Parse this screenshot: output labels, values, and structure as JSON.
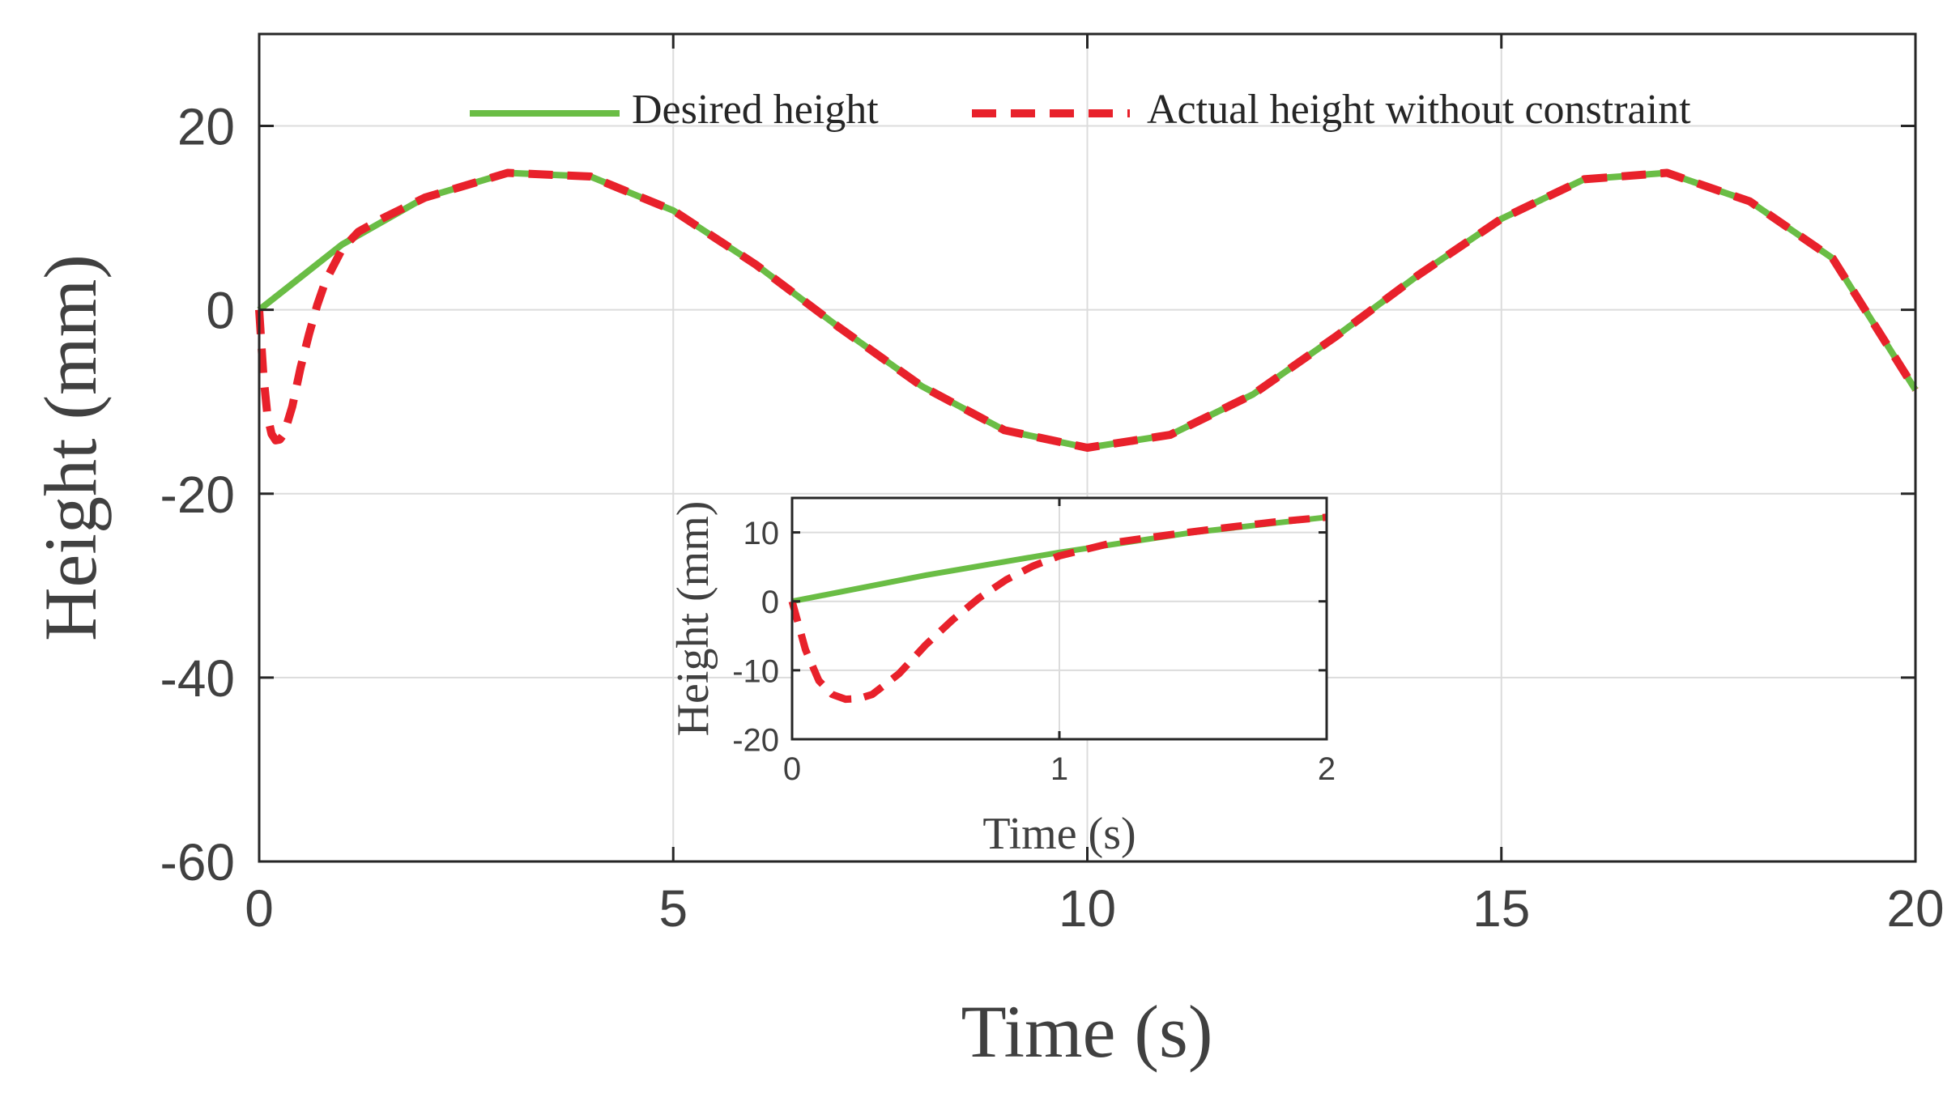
{
  "chart_data": [
    {
      "id": "main",
      "type": "line",
      "title": "",
      "xlabel": "Time (s)",
      "ylabel": "Height (mm)",
      "xlim": [
        0,
        20
      ],
      "ylim": [
        -60,
        30
      ],
      "xticks": [
        0,
        5,
        10,
        15,
        20
      ],
      "xtick_labels": [
        "0",
        "5",
        "10",
        "15",
        "20"
      ],
      "yticks": [
        -60,
        -40,
        -20,
        0,
        20
      ],
      "ytick_labels": [
        "-60",
        "-40",
        "-20",
        "0",
        "20"
      ],
      "grid": true,
      "legend_position": "top-right",
      "series": [
        {
          "name": "Desired height",
          "style": "solid",
          "color": "#6ABD45",
          "x": [
            0,
            1,
            2,
            3,
            4,
            5,
            6,
            7,
            8,
            9,
            10,
            11,
            12,
            13,
            14,
            15,
            16,
            17,
            18,
            19,
            20
          ],
          "y": [
            0,
            7.1,
            12.2,
            14.9,
            14.5,
            10.8,
            4.9,
            -1.9,
            -8.3,
            -13.1,
            -15.0,
            -13.6,
            -9.2,
            -2.9,
            3.8,
            9.9,
            14.2,
            14.9,
            11.8,
            5.6,
            -8.7
          ]
        },
        {
          "name": "Actual height without constraint",
          "style": "dashed",
          "color": "#E8212B",
          "x": [
            0,
            0.05,
            0.1,
            0.15,
            0.2,
            0.25,
            0.3,
            0.4,
            0.5,
            0.6,
            0.7,
            0.8,
            1.0,
            1.2,
            1.5,
            2,
            3,
            4,
            5,
            6,
            7,
            8,
            9,
            10,
            11,
            12,
            13,
            14,
            15,
            16,
            17,
            18,
            19,
            20
          ],
          "y": [
            0,
            -7,
            -11.5,
            -13.5,
            -14.2,
            -14.1,
            -13.5,
            -10.5,
            -6.3,
            -2.7,
            0.5,
            3.1,
            6.6,
            8.5,
            10.0,
            12.2,
            14.9,
            14.5,
            10.8,
            4.9,
            -1.9,
            -8.3,
            -13.1,
            -15.0,
            -13.6,
            -9.2,
            -2.9,
            3.8,
            9.9,
            14.2,
            14.9,
            11.8,
            5.6,
            -8.7
          ]
        }
      ]
    },
    {
      "id": "inset",
      "type": "line",
      "title": "",
      "xlabel": "Time (s)",
      "ylabel": "Height (mm)",
      "xlim": [
        0,
        2
      ],
      "ylim": [
        -20,
        15
      ],
      "xticks": [
        0,
        1,
        2
      ],
      "xtick_labels": [
        "0",
        "1",
        "2"
      ],
      "yticks": [
        -20,
        -10,
        0,
        10
      ],
      "ytick_labels": [
        "-20",
        "-10",
        "0",
        "10"
      ],
      "grid": true,
      "series": [
        {
          "name": "Desired height",
          "style": "solid",
          "color": "#6ABD45",
          "x": [
            0,
            0.5,
            1.0,
            1.5,
            2.0
          ],
          "y": [
            0,
            3.8,
            7.1,
            10.0,
            12.2
          ]
        },
        {
          "name": "Actual height without constraint",
          "style": "dashed",
          "color": "#E8212B",
          "x": [
            0,
            0.05,
            0.1,
            0.15,
            0.2,
            0.25,
            0.3,
            0.4,
            0.5,
            0.6,
            0.7,
            0.8,
            0.9,
            1.0,
            1.2,
            1.4,
            1.6,
            1.8,
            2.0
          ],
          "y": [
            0,
            -7,
            -11.5,
            -13.5,
            -14.2,
            -14.1,
            -13.5,
            -10.5,
            -6.3,
            -2.7,
            0.5,
            3.1,
            5.1,
            6.6,
            8.5,
            9.6,
            10.6,
            11.5,
            12.2
          ]
        }
      ]
    }
  ]
}
